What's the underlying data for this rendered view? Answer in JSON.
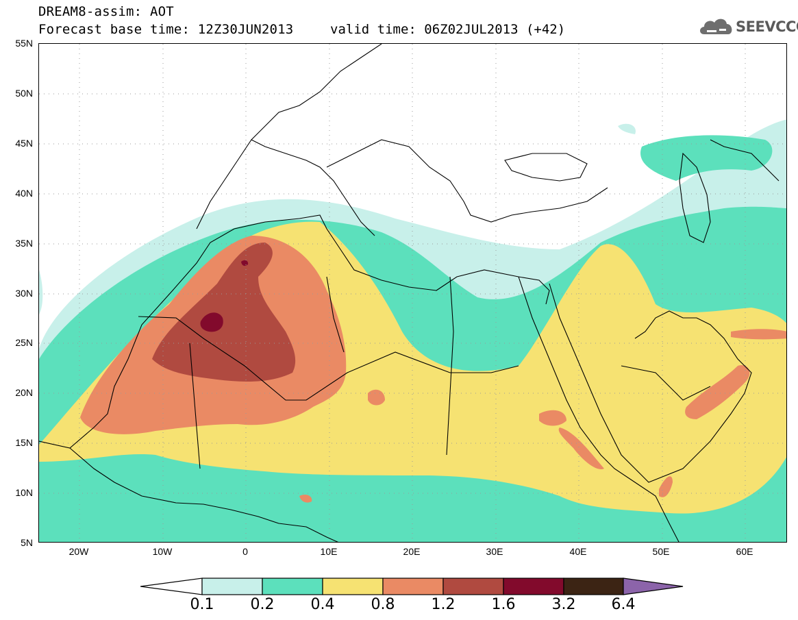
{
  "title": {
    "line1": "DREAM8-assim: AOT",
    "line2": "Forecast base time: 12Z30JUN2013",
    "valid": "valid time: 06Z02JUL2013 (+42)"
  },
  "logo": {
    "text": "SEEVCCC",
    "icon": "cloud-icon"
  },
  "map": {
    "lat_labels": [
      "55N",
      "50N",
      "45N",
      "40N",
      "35N",
      "30N",
      "25N",
      "20N",
      "15N",
      "10N",
      "5N"
    ],
    "lon_labels": [
      "20W",
      "10W",
      "0",
      "10E",
      "20E",
      "30E",
      "40E",
      "50E",
      "60E"
    ],
    "lon_range": [
      -25,
      65
    ],
    "lat_range": [
      5,
      55
    ]
  },
  "colorbar": {
    "labels": [
      "0.1",
      "0.2",
      "0.4",
      "0.8",
      "1.2",
      "1.6",
      "3.2",
      "6.4"
    ],
    "colors": [
      "#c8f0ea",
      "#5ce0bc",
      "#f6e272",
      "#ea8a64",
      "#b04a40",
      "#820a2c",
      "#3c2414",
      "#8c64aa"
    ]
  }
}
